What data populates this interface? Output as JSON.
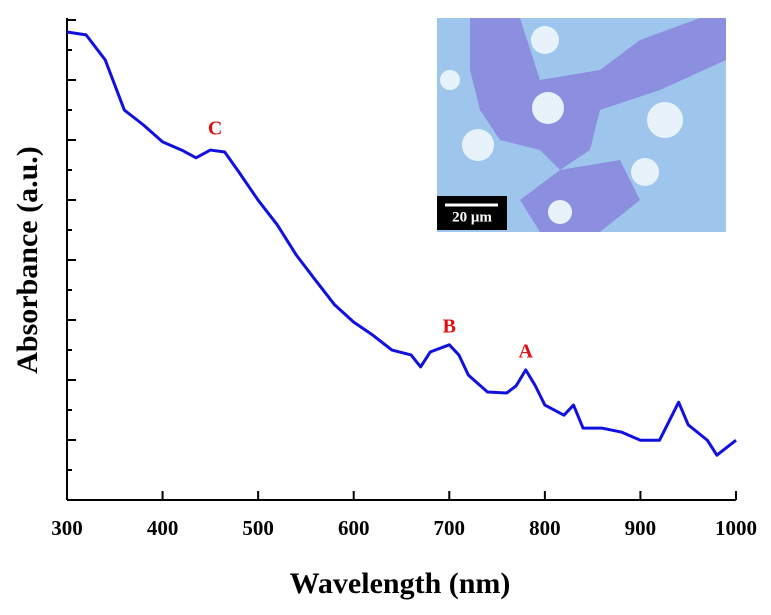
{
  "chart_data": {
    "type": "line",
    "xlabel": "Wavelength (nm)",
    "ylabel": "Absorbance (a.u.)",
    "x": [
      300,
      320,
      340,
      360,
      380,
      400,
      420,
      435,
      450,
      465,
      480,
      500,
      520,
      540,
      560,
      580,
      600,
      620,
      640,
      660,
      670,
      680,
      700,
      710,
      720,
      740,
      760,
      770,
      780,
      790,
      800,
      820,
      830,
      840,
      860,
      880,
      900,
      920,
      940,
      950,
      970,
      980,
      1000
    ],
    "series": [
      {
        "color": "#1010e0",
        "values": [
          0.971,
          0.965,
          0.913,
          0.809,
          0.778,
          0.743,
          0.726,
          0.71,
          0.726,
          0.722,
          0.68,
          0.622,
          0.571,
          0.508,
          0.456,
          0.405,
          0.369,
          0.342,
          0.311,
          0.301,
          0.276,
          0.307,
          0.322,
          0.301,
          0.259,
          0.224,
          0.222,
          0.237,
          0.27,
          0.237,
          0.197,
          0.176,
          0.197,
          0.149,
          0.149,
          0.141,
          0.124,
          0.124,
          0.203,
          0.156,
          0.124,
          0.093,
          0.124
        ]
      }
    ],
    "xlim": [
      300,
      1000
    ],
    "xticks": [
      300,
      400,
      500,
      600,
      700,
      800,
      900,
      1000
    ],
    "ylim": [
      0,
      1
    ],
    "annotations": [
      {
        "text": "C",
        "x": 455,
        "y": 0.768,
        "color": "#e01010"
      },
      {
        "text": "B",
        "x": 700,
        "y": 0.357,
        "color": "#e01010"
      },
      {
        "text": "A",
        "x": 780,
        "y": 0.305,
        "color": "#e01010"
      }
    ],
    "inset_scale_label": "20 μm"
  }
}
